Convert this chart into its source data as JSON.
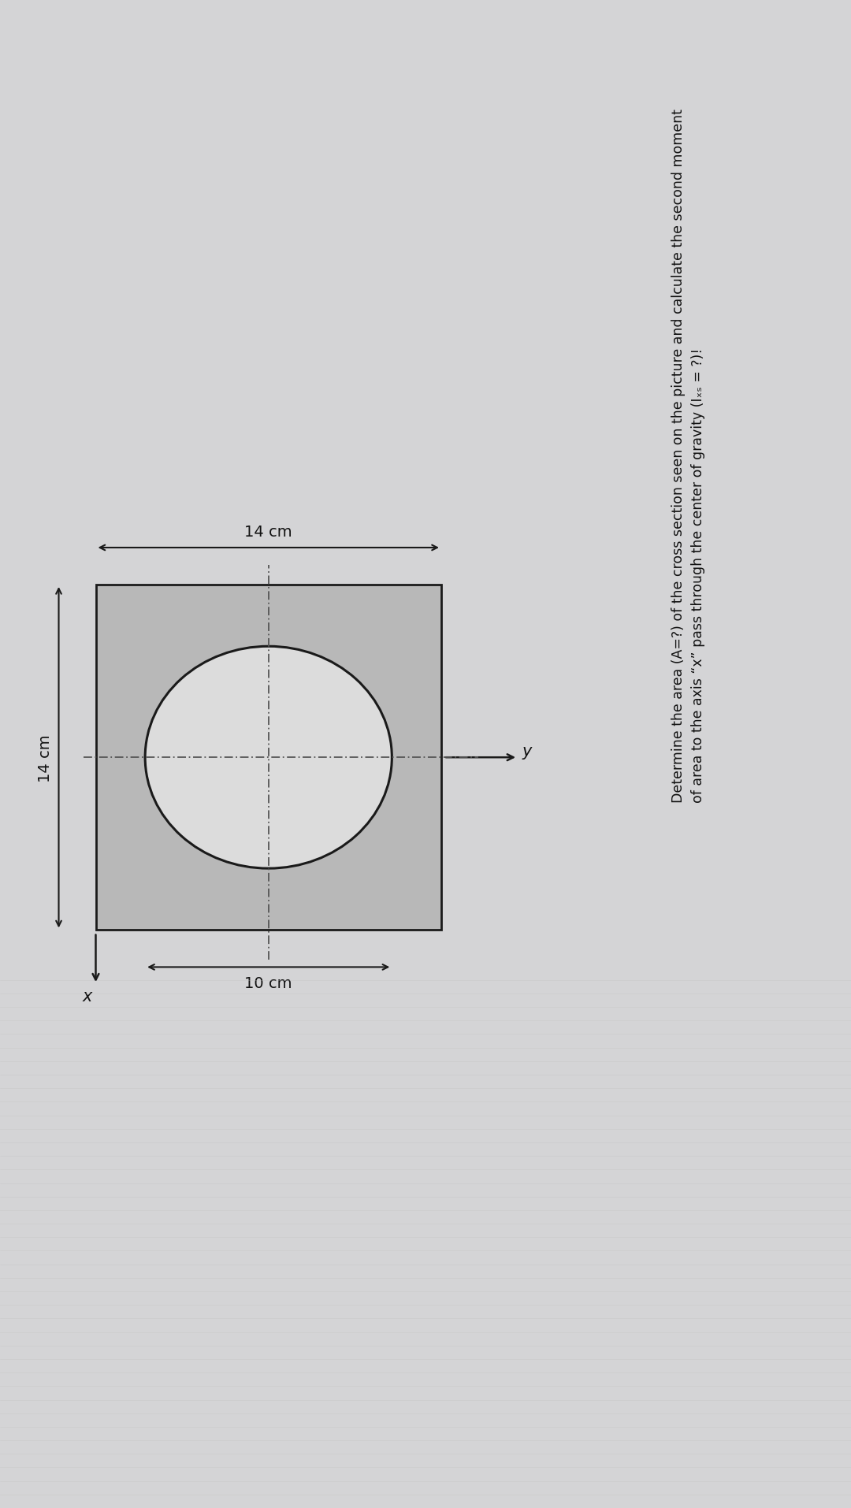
{
  "fig_width": 10.8,
  "fig_height": 19.15,
  "bg_top_color": "#c8c8cc",
  "bg_main_color": "#d4d4d6",
  "bg_bottom_color": "#d8d8d8",
  "square_color": "#b8b8b8",
  "square_edge_color": "#1a1a1a",
  "circle_color": "#dcdcdc",
  "circle_edge_color": "#1a1a1a",
  "dashed_color": "#555555",
  "arrow_color": "#1a1a1a",
  "text_color": "#111111",
  "dim_14cm_top": "14 cm",
  "dim_14cm_left": "14 cm",
  "dim_10cm": "10 cm",
  "axis_y_label": "y",
  "axis_x_label": "x",
  "title_line1": "Determine the area (A=?) of the cross section seen on the picture and calculate the second moment",
  "title_line2": "of area to the axis “x” pass through the center of gravity (Iₓₛ = ?)!",
  "title_fontsize": 12.5,
  "dim_fontsize": 14,
  "axis_fontsize": 14,
  "sq_lw": 2.0,
  "circ_lw": 2.2,
  "dash_lw": 1.3,
  "arr_lw": 1.5
}
